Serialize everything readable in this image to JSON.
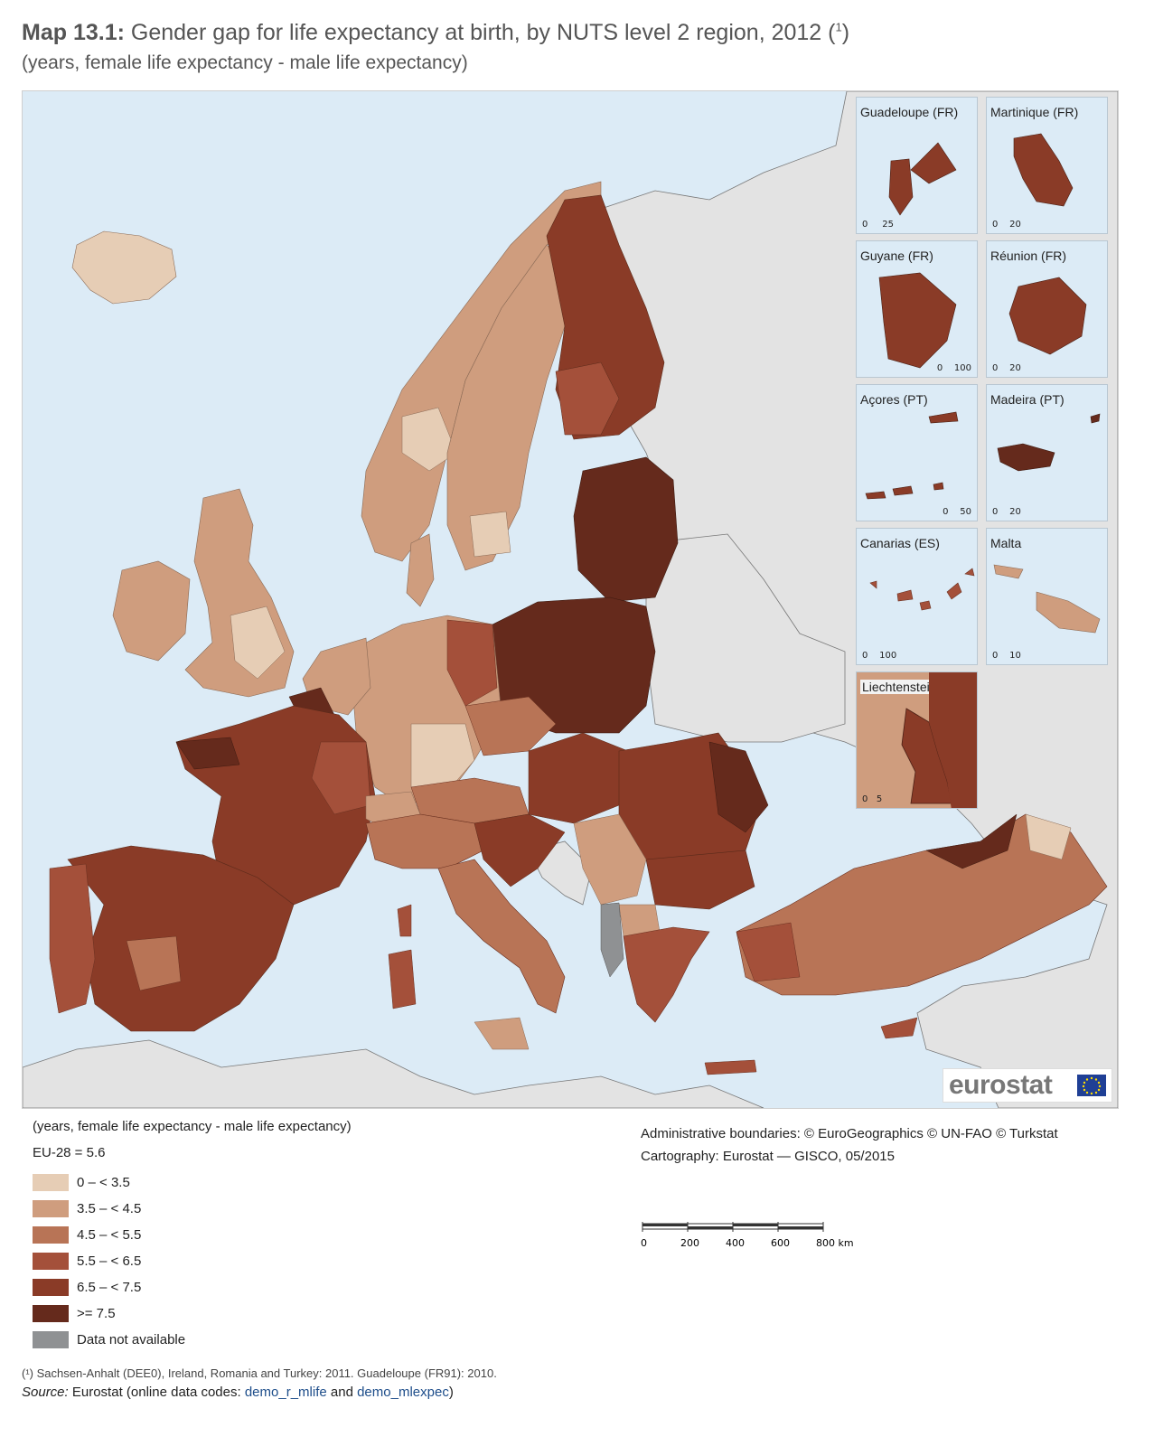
{
  "title": {
    "label": "Map 13.1:",
    "text": "Gender gap for life expectancy at birth, by NUTS level 2 region, 2012 (",
    "sup": "1",
    "close": ")"
  },
  "subtitle": "(years, female life expectancy - male life expectancy)",
  "colors": {
    "sea": "#dcebf6",
    "nodata_land": "#e3e3e3",
    "class_1": "#e6cdb5",
    "class_2": "#cf9d7e",
    "class_3": "#b87456",
    "class_4": "#a4503a",
    "class_5": "#8a3b27",
    "class_6": "#652a1c",
    "class_na": "#8f9193"
  },
  "insets": [
    {
      "name": "Guadeloupe (FR)",
      "scale": [
        "0",
        "25"
      ]
    },
    {
      "name": "Martinique (FR)",
      "scale": [
        "0",
        "20"
      ]
    },
    {
      "name": "Guyane (FR)",
      "scale": [
        "0",
        "100"
      ]
    },
    {
      "name": "Réunion (FR)",
      "scale": [
        "0",
        "20"
      ]
    },
    {
      "name": "Açores (PT)",
      "scale": [
        "0",
        "50"
      ]
    },
    {
      "name": "Madeira (PT)",
      "scale": [
        "0",
        "20"
      ]
    },
    {
      "name": "Canarias (ES)",
      "scale": [
        "0",
        "100"
      ]
    },
    {
      "name": "Malta",
      "scale": [
        "0",
        "10"
      ]
    },
    {
      "name": "Liechtenstein",
      "scale": [
        "0",
        "5"
      ]
    }
  ],
  "logo": {
    "text": "eurostat",
    "flag_icon": "eu-flag-icon"
  },
  "legend": {
    "title": "(years, female life expectancy - male life expectancy)",
    "eu_value": "EU-28 = 5.6",
    "classes": [
      {
        "label": "0 – < 3.5",
        "color": "#e6cdb5"
      },
      {
        "label": "3.5 – < 4.5",
        "color": "#cf9d7e"
      },
      {
        "label": "4.5 – < 5.5",
        "color": "#b87456"
      },
      {
        "label": "5.5 – < 6.5",
        "color": "#a4503a"
      },
      {
        "label": "6.5 – < 7.5",
        "color": "#8a3b27"
      },
      {
        "label": ">= 7.5",
        "color": "#652a1c"
      },
      {
        "label": "Data not available",
        "color": "#8f9193"
      }
    ]
  },
  "credits": {
    "boundaries": "Administrative boundaries: © EuroGeographics © UN-FAO © Turkstat",
    "cartography": "Cartography: Eurostat — GISCO, 05/2015"
  },
  "scalebar": {
    "ticks": [
      "0",
      "200",
      "400",
      "600",
      "800 km"
    ]
  },
  "footnote": "(¹)  Sachsen-Anhalt (DEE0), Ireland, Romania and Turkey: 2011. Guadeloupe (FR91): 2010.",
  "source": {
    "label": "Source:",
    "text1": "Eurostat (online data codes:",
    "code1": "demo_r_mlife",
    "and": "and",
    "code2": "demo_mlexpec",
    "close": ")"
  }
}
